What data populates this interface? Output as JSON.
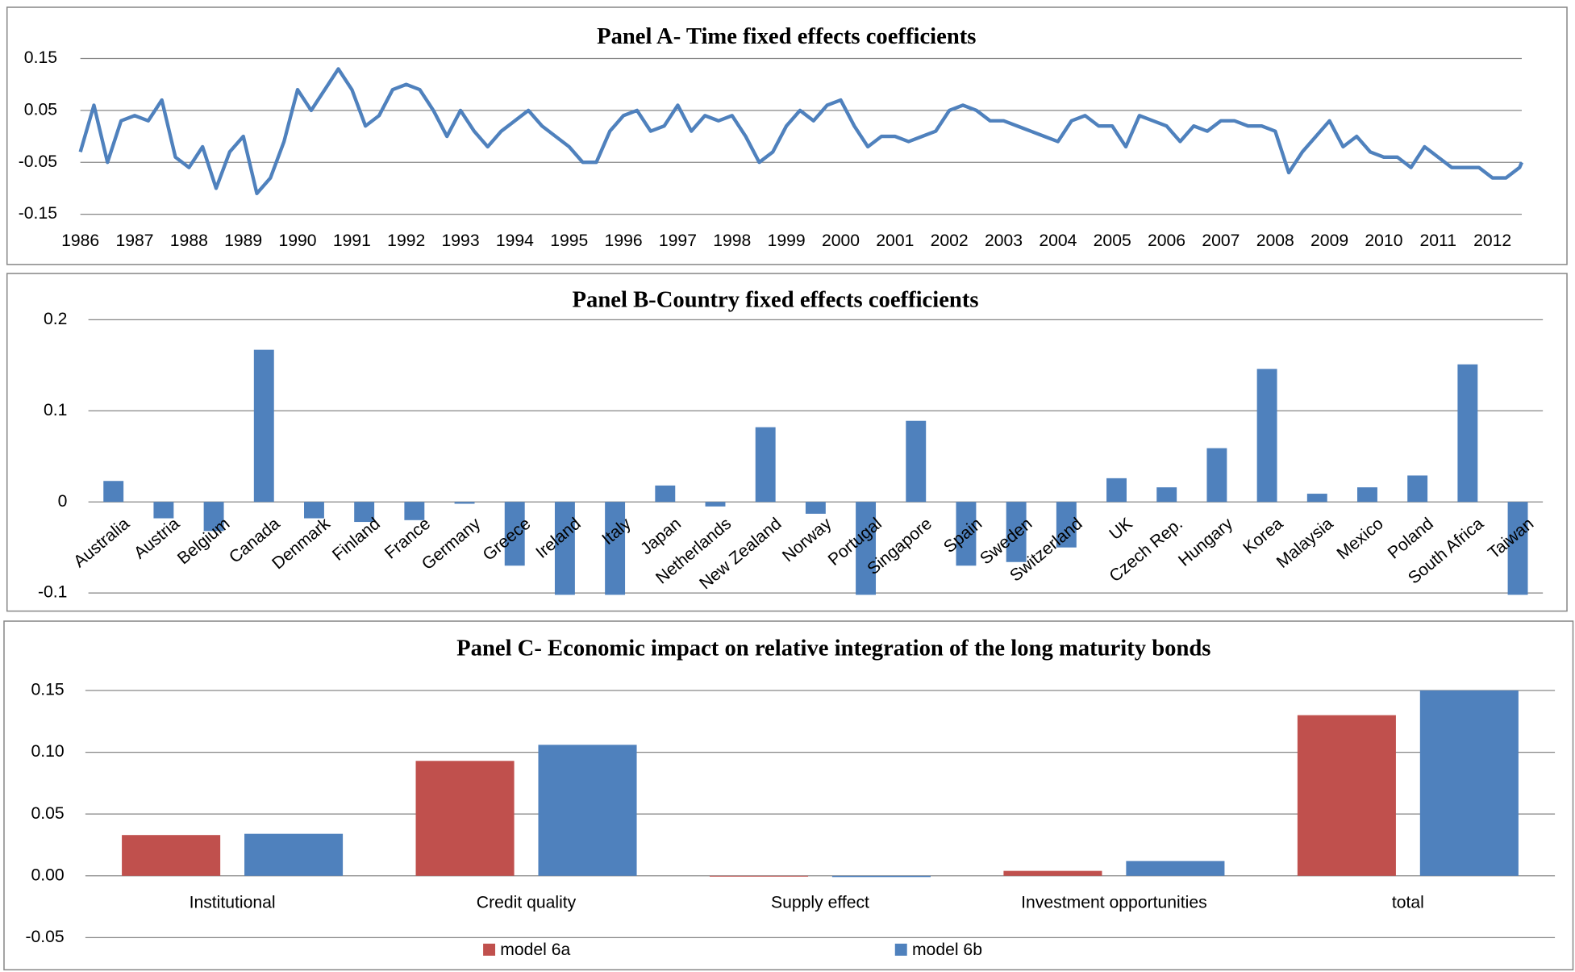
{
  "chart_data": [
    {
      "type": "line",
      "title": "Panel A- Time fixed effects coefficients",
      "color": "#4f81bd",
      "x": [
        1986,
        1986.25,
        1986.5,
        1986.75,
        1987,
        1987.25,
        1987.5,
        1987.75,
        1988,
        1988.25,
        1988.5,
        1988.75,
        1989,
        1989.25,
        1989.5,
        1989.75,
        1990,
        1990.25,
        1990.5,
        1990.75,
        1991,
        1991.25,
        1991.5,
        1991.75,
        1992,
        1992.25,
        1992.5,
        1992.75,
        1993,
        1993.25,
        1993.5,
        1993.75,
        1994,
        1994.25,
        1994.5,
        1994.75,
        1995,
        1995.25,
        1995.5,
        1995.75,
        1996,
        1996.25,
        1996.5,
        1996.75,
        1997,
        1997.25,
        1997.5,
        1997.75,
        1998,
        1998.25,
        1998.5,
        1998.75,
        1999,
        1999.25,
        1999.5,
        1999.75,
        2000,
        2000.25,
        2000.5,
        2000.75,
        2001,
        2001.25,
        2001.5,
        2001.75,
        2002,
        2002.25,
        2002.5,
        2002.75,
        2003,
        2003.25,
        2003.5,
        2003.75,
        2004,
        2004.25,
        2004.5,
        2004.75,
        2005,
        2005.25,
        2005.5,
        2005.75,
        2006,
        2006.25,
        2006.5,
        2006.75,
        2007,
        2007.25,
        2007.5,
        2007.75,
        2008,
        2008.25,
        2008.5,
        2008.75,
        2009,
        2009.25,
        2009.5,
        2009.75,
        2010,
        2010.25,
        2010.5,
        2010.75,
        2011,
        2011.25,
        2011.5,
        2011.75,
        2012,
        2012.25,
        2012.5,
        2012.54
      ],
      "values": [
        -0.03,
        0.06,
        -0.05,
        0.03,
        0.04,
        0.03,
        0.07,
        -0.04,
        -0.06,
        -0.02,
        -0.1,
        -0.03,
        0.0,
        -0.11,
        -0.08,
        -0.01,
        0.09,
        0.05,
        0.09,
        0.13,
        0.09,
        0.02,
        0.04,
        0.09,
        0.1,
        0.09,
        0.05,
        0.0,
        0.05,
        0.01,
        -0.02,
        0.01,
        0.03,
        0.05,
        0.02,
        0.0,
        -0.02,
        -0.05,
        -0.05,
        0.01,
        0.04,
        0.05,
        0.01,
        0.02,
        0.06,
        0.01,
        0.04,
        0.03,
        0.04,
        0.0,
        -0.05,
        -0.03,
        0.02,
        0.05,
        0.03,
        0.06,
        0.07,
        0.02,
        -0.02,
        0.0,
        0.0,
        -0.01,
        0.0,
        0.01,
        0.05,
        0.06,
        0.05,
        0.03,
        0.03,
        0.02,
        0.01,
        0.0,
        -0.01,
        0.03,
        0.04,
        0.02,
        0.02,
        -0.02,
        0.04,
        0.03,
        0.02,
        -0.01,
        0.02,
        0.01,
        0.03,
        0.03,
        0.02,
        0.02,
        0.01,
        -0.07,
        -0.03,
        0.0,
        0.03,
        -0.02,
        0.0,
        -0.03,
        -0.04,
        -0.04,
        -0.06,
        -0.02,
        -0.04,
        -0.06,
        -0.06,
        -0.06,
        -0.08,
        -0.08,
        -0.06,
        -0.05
      ],
      "xlim": [
        1986,
        2012.54
      ],
      "xticks": [
        1986,
        1987,
        1988,
        1989,
        1990,
        1991,
        1992,
        1993,
        1994,
        1995,
        1996,
        1997,
        1998,
        1999,
        2000,
        2001,
        2002,
        2003,
        2004,
        2005,
        2006,
        2007,
        2008,
        2009,
        2010,
        2011,
        2012
      ],
      "ylim": [
        -0.15,
        0.15
      ],
      "yticks": [
        0.15,
        0.05,
        -0.05,
        -0.15
      ],
      "grid": true
    },
    {
      "type": "bar",
      "title": "Panel B-Country fixed effects coefficients",
      "color": "#4f81bd",
      "categories": [
        "Australia",
        "Austria",
        "Belgium",
        "Canada",
        "Denmark",
        "Finland",
        "France",
        "Germany",
        "Greece",
        "Ireland",
        "Italy",
        "Japan",
        "Netherlands",
        "New Zealand",
        "Norway",
        "Portugal",
        "Singapore",
        "Spain",
        "Sweden",
        "Switzerland",
        "UK",
        "Czech Rep.",
        "Hungary",
        "Korea",
        "Malaysia",
        "Mexico",
        "Poland",
        "South Africa",
        "Taiwan"
      ],
      "values": [
        0.023,
        -0.018,
        -0.032,
        0.167,
        -0.018,
        -0.022,
        -0.02,
        -0.002,
        -0.07,
        -0.102,
        -0.102,
        0.018,
        -0.005,
        0.082,
        -0.013,
        -0.102,
        0.089,
        -0.07,
        -0.066,
        -0.05,
        0.026,
        0.016,
        0.059,
        0.146,
        0.009,
        0.016,
        0.029,
        0.151,
        -0.102
      ],
      "ylim": [
        -0.1,
        0.2
      ],
      "yticks": [
        0.2,
        0.1,
        0,
        -0.1
      ],
      "grid": true
    },
    {
      "type": "grouped-bar",
      "title": "Panel C- Economic impact on relative integration of the  long maturity bonds",
      "categories": [
        "Institutional",
        "Credit quality",
        "Supply effect",
        "Investment opportunities",
        "total"
      ],
      "series": [
        {
          "name": "model 6a",
          "color": "#c0504d",
          "values": [
            0.033,
            0.093,
            0,
            0.004,
            0.13
          ]
        },
        {
          "name": "model 6b",
          "color": "#4f81bd",
          "values": [
            0.034,
            0.106,
            -0.001,
            0.012,
            0.15
          ]
        }
      ],
      "ylim": [
        -0.05,
        0.15
      ],
      "yticks": [
        0.15,
        {
          "value": 0.1,
          "label": "0.10"
        },
        0.05,
        {
          "value": 0,
          "label": "0.00"
        },
        -0.05
      ],
      "grid": true,
      "legend": "bottom"
    }
  ]
}
